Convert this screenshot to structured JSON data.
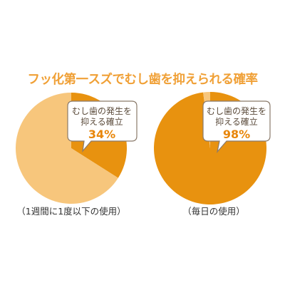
{
  "title": "フッ化第一スズでむし歯を抑えられる確率",
  "colors": {
    "accent": "#E8920F",
    "light": "#F7C67C",
    "title": "#F0A036"
  },
  "chart_data": [
    {
      "type": "pie",
      "caption": "（1週間に1度以下の使用）",
      "callout_line1": "むし歯の発生を",
      "callout_line2": "抑える確立",
      "value_label": "34%",
      "slices": [
        {
          "label": "むし歯の発生を抑える確立",
          "value": 34
        },
        {
          "label": "",
          "value": 66
        }
      ]
    },
    {
      "type": "pie",
      "caption": "（毎日の使用）",
      "callout_line1": "むし歯の発生を",
      "callout_line2": "抑える確立",
      "value_label": "98%",
      "slices": [
        {
          "label": "むし歯の発生を抑える確立",
          "value": 98
        },
        {
          "label": "",
          "value": 2
        }
      ]
    }
  ]
}
